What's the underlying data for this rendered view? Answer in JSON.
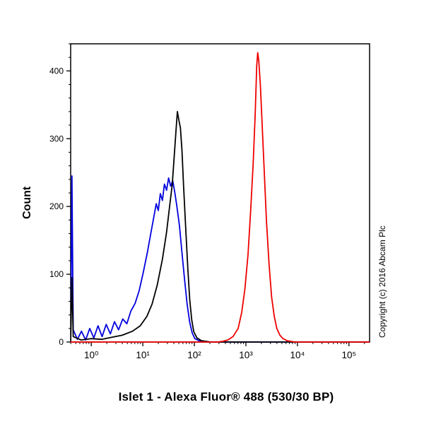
{
  "copyright": "Copyright (c) 2016 Abcam Plc",
  "chart_data": {
    "type": "line",
    "title": "Islet 1 - Alexa Fluor® 488 (530/30 BP)",
    "xlabel": "",
    "ylabel": "Count",
    "xscale": "log",
    "xlim_log10": [
      -0.4,
      5.4
    ],
    "ylim": [
      0,
      440
    ],
    "x_tick_labels": [
      "10⁰",
      "10¹",
      "10²",
      "10³",
      "10⁴",
      "10⁵"
    ],
    "x_tick_log10": [
      0,
      1,
      2,
      3,
      4,
      5
    ],
    "y_tick_labels": [
      "0",
      "100",
      "200",
      "300",
      "400"
    ],
    "y_tick_values": [
      0,
      100,
      200,
      300,
      400
    ],
    "y_minor_step": 20,
    "grid": false,
    "legend": "none",
    "axis_color": "#000000",
    "series": [
      {
        "name": "blue-curve",
        "color": "#0000dd",
        "points": [
          [
            -0.4,
            0
          ],
          [
            -0.375,
            245
          ],
          [
            -0.35,
            18
          ],
          [
            -0.27,
            4
          ],
          [
            -0.19,
            16
          ],
          [
            -0.11,
            3
          ],
          [
            -0.03,
            20
          ],
          [
            0.05,
            6
          ],
          [
            0.13,
            24
          ],
          [
            0.21,
            8
          ],
          [
            0.29,
            26
          ],
          [
            0.37,
            12
          ],
          [
            0.45,
            30
          ],
          [
            0.53,
            18
          ],
          [
            0.61,
            34
          ],
          [
            0.69,
            27
          ],
          [
            0.77,
            46
          ],
          [
            0.85,
            57
          ],
          [
            0.93,
            76
          ],
          [
            1.01,
            103
          ],
          [
            1.09,
            133
          ],
          [
            1.15,
            158
          ],
          [
            1.21,
            183
          ],
          [
            1.26,
            204
          ],
          [
            1.3,
            194
          ],
          [
            1.34,
            219
          ],
          [
            1.38,
            209
          ],
          [
            1.42,
            233
          ],
          [
            1.46,
            224
          ],
          [
            1.5,
            242
          ],
          [
            1.54,
            230
          ],
          [
            1.58,
            238
          ],
          [
            1.62,
            221
          ],
          [
            1.66,
            201
          ],
          [
            1.71,
            172
          ],
          [
            1.76,
            132
          ],
          [
            1.81,
            92
          ],
          [
            1.86,
            56
          ],
          [
            1.91,
            29
          ],
          [
            1.96,
            13
          ],
          [
            2.01,
            5
          ],
          [
            2.09,
            2
          ],
          [
            2.25,
            0
          ],
          [
            5.4,
            0
          ]
        ]
      },
      {
        "name": "black-curve",
        "color": "#000000",
        "points": [
          [
            -0.4,
            0
          ],
          [
            -0.375,
            95
          ],
          [
            -0.35,
            8
          ],
          [
            -0.2,
            3
          ],
          [
            0.0,
            5
          ],
          [
            0.2,
            4
          ],
          [
            0.4,
            7
          ],
          [
            0.6,
            10
          ],
          [
            0.8,
            16
          ],
          [
            0.95,
            24
          ],
          [
            1.08,
            38
          ],
          [
            1.18,
            56
          ],
          [
            1.28,
            84
          ],
          [
            1.38,
            122
          ],
          [
            1.46,
            162
          ],
          [
            1.52,
            200
          ],
          [
            1.57,
            232
          ],
          [
            1.61,
            275
          ],
          [
            1.64,
            308
          ],
          [
            1.67,
            340
          ],
          [
            1.7,
            327
          ],
          [
            1.73,
            316
          ],
          [
            1.76,
            283
          ],
          [
            1.79,
            232
          ],
          [
            1.83,
            172
          ],
          [
            1.87,
            112
          ],
          [
            1.91,
            62
          ],
          [
            1.95,
            32
          ],
          [
            1.99,
            15
          ],
          [
            2.05,
            6
          ],
          [
            2.14,
            2
          ],
          [
            2.32,
            0
          ],
          [
            5.4,
            0
          ]
        ]
      },
      {
        "name": "red-curve",
        "color": "#ee0000",
        "points": [
          [
            -0.4,
            0
          ],
          [
            2.45,
            0
          ],
          [
            2.55,
            1
          ],
          [
            2.65,
            3
          ],
          [
            2.75,
            8
          ],
          [
            2.85,
            20
          ],
          [
            2.92,
            44
          ],
          [
            2.98,
            78
          ],
          [
            3.04,
            128
          ],
          [
            3.09,
            190
          ],
          [
            3.14,
            262
          ],
          [
            3.18,
            335
          ],
          [
            3.21,
            408
          ],
          [
            3.23,
            427
          ],
          [
            3.25,
            415
          ],
          [
            3.28,
            380
          ],
          [
            3.3,
            348
          ],
          [
            3.35,
            262
          ],
          [
            3.4,
            178
          ],
          [
            3.45,
            114
          ],
          [
            3.5,
            66
          ],
          [
            3.55,
            38
          ],
          [
            3.6,
            20
          ],
          [
            3.66,
            10
          ],
          [
            3.72,
            5
          ],
          [
            3.8,
            2
          ],
          [
            3.95,
            0
          ],
          [
            5.4,
            0
          ]
        ]
      }
    ]
  }
}
